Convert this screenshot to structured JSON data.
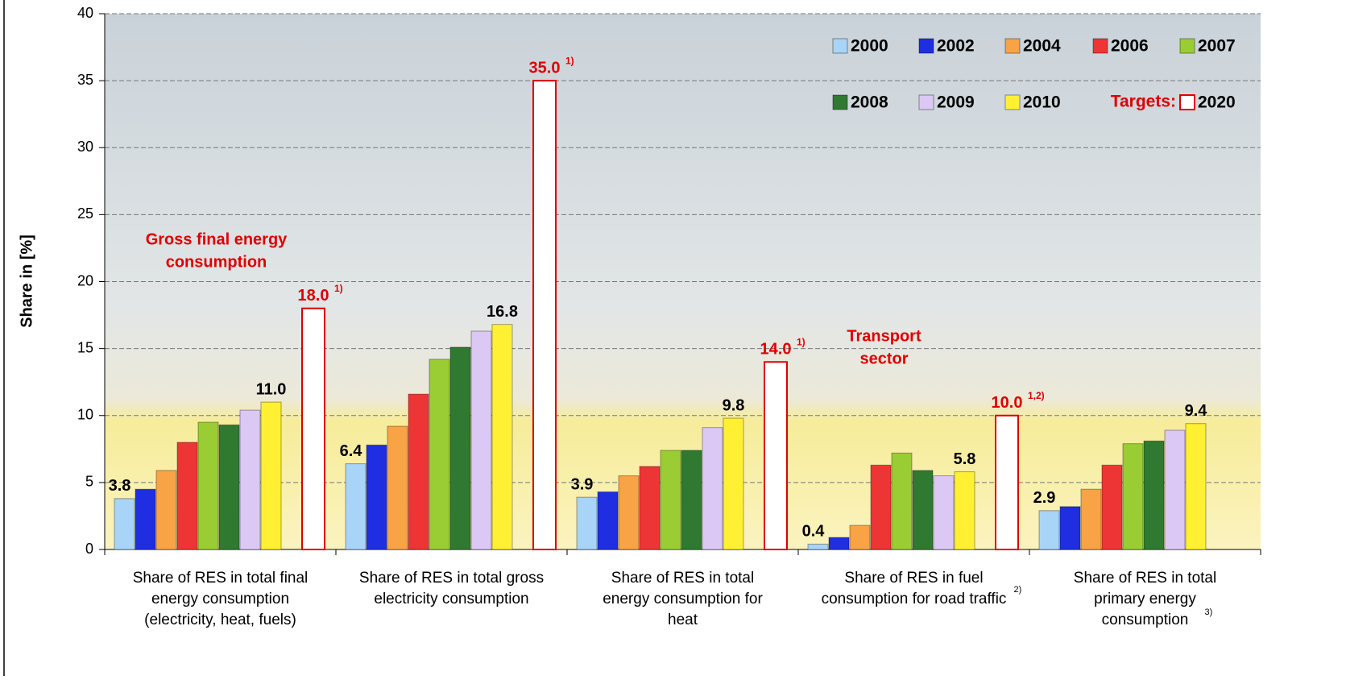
{
  "chart_data": {
    "type": "bar",
    "y_label": "Share in [%]",
    "categories": [
      [
        "Share of RES in total final",
        "energy consumption",
        "(electricity, heat, fuels)"
      ],
      [
        "Share of RES in total gross",
        "electricity consumption"
      ],
      [
        "Share of RES in total",
        "energy consumption for",
        "heat"
      ],
      [
        "Share of RES in fuel",
        "consumption for road traffic"
      ],
      [
        "Share of RES in total",
        "primary energy",
        "consumption"
      ]
    ],
    "category_notes": [
      null,
      null,
      null,
      "2)",
      "3)"
    ],
    "series": [
      {
        "name": "2000",
        "color": "#a8d4f7",
        "values": [
          3.8,
          6.4,
          3.9,
          0.4,
          2.9
        ],
        "value_labels": [
          "3.8",
          "6.4",
          "3.9",
          "0.4",
          "2.9"
        ]
      },
      {
        "name": "2002",
        "color": "#1f2ee0",
        "values": [
          4.5,
          7.8,
          4.3,
          0.9,
          3.2
        ]
      },
      {
        "name": "2004",
        "color": "#f8a346",
        "values": [
          5.9,
          9.2,
          5.5,
          1.8,
          4.5
        ]
      },
      {
        "name": "2006",
        "color": "#ee3535",
        "values": [
          8.0,
          11.6,
          6.2,
          6.3,
          6.3
        ]
      },
      {
        "name": "2007",
        "color": "#9acd34",
        "values": [
          9.5,
          14.2,
          7.4,
          7.2,
          7.9
        ]
      },
      {
        "name": "2008",
        "color": "#2f7a30",
        "values": [
          9.3,
          15.1,
          7.4,
          5.9,
          8.1
        ]
      },
      {
        "name": "2009",
        "color": "#dcc8f4",
        "values": [
          10.4,
          16.3,
          9.1,
          5.5,
          8.9
        ]
      },
      {
        "name": "2010",
        "color": "#fff033",
        "values": [
          11.0,
          16.8,
          9.8,
          5.8,
          9.4
        ],
        "value_labels": [
          "11.0",
          "16.8",
          "9.8",
          "5.8",
          "9.4"
        ]
      },
      {
        "name": "2020",
        "color": "#ffffff",
        "stroke": "#e00000",
        "target": true,
        "values": [
          18.0,
          35.0,
          14.0,
          10.0,
          null
        ],
        "value_labels": [
          "18.0",
          "35.0",
          "14.0",
          "10.0",
          null
        ],
        "value_notes": [
          "1)",
          "1)",
          "1)",
          "1,2)",
          null
        ]
      }
    ],
    "targets_label": "Targets:",
    "annotations": [
      {
        "lines": [
          "Gross final energy",
          "consumption"
        ]
      },
      {
        "lines": [
          "Transport",
          "sector"
        ]
      }
    ],
    "ylim": [
      0,
      40
    ],
    "yticks": [
      0,
      5,
      10,
      15,
      20,
      25,
      30,
      35,
      40
    ],
    "grid": true
  }
}
